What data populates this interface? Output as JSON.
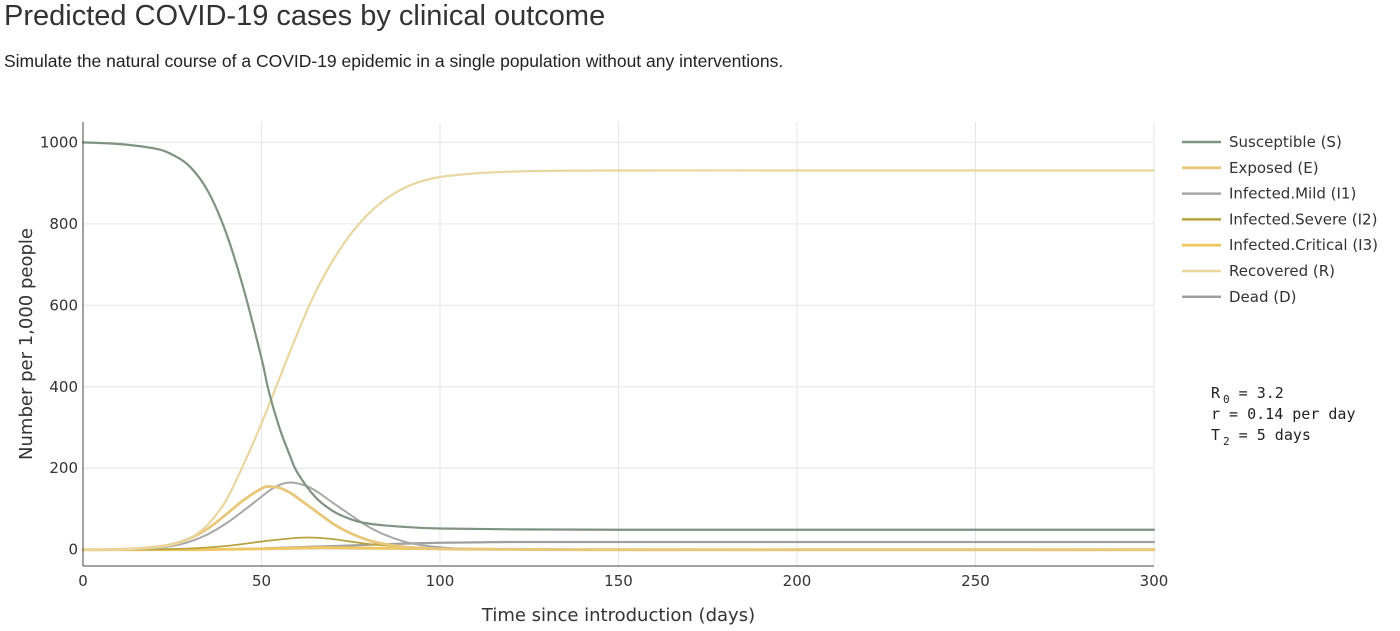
{
  "header": {
    "title": "Predicted COVID-19 cases by clinical outcome",
    "subtitle": "Simulate the natural course of a COVID-19 epidemic in a single population without any interventions."
  },
  "chart_data": {
    "type": "line",
    "xlabel": "Time since introduction (days)",
    "ylabel": "Number per 1,000 people",
    "xlim": [
      0,
      300
    ],
    "ylim": [
      -40,
      1050
    ],
    "xticks": [
      0,
      50,
      100,
      150,
      200,
      250,
      300
    ],
    "yticks": [
      0,
      200,
      400,
      600,
      800,
      1000
    ],
    "grid": true,
    "legend_position": "right",
    "series": [
      {
        "name": "Susceptible (S)",
        "color": "#7f9383",
        "width": 2.2,
        "x": [
          0,
          10,
          20,
          25,
          30,
          35,
          40,
          45,
          50,
          52,
          55,
          58,
          60,
          65,
          70,
          75,
          80,
          90,
          100,
          120,
          150,
          200,
          250,
          300
        ],
        "y": [
          1000,
          996,
          985,
          970,
          940,
          880,
          780,
          640,
          470,
          390,
          300,
          230,
          190,
          130,
          95,
          75,
          64,
          56,
          52,
          50,
          49,
          49,
          49,
          49
        ]
      },
      {
        "name": "Exposed (E)",
        "color": "#e8c77a",
        "width": 2.8,
        "x": [
          0,
          10,
          20,
          25,
          30,
          35,
          40,
          45,
          50,
          52,
          55,
          58,
          60,
          65,
          70,
          75,
          80,
          85,
          90,
          95,
          100,
          110,
          150,
          200,
          300
        ],
        "y": [
          0,
          1,
          6,
          13,
          28,
          52,
          86,
          122,
          150,
          155,
          152,
          140,
          128,
          96,
          64,
          40,
          23,
          13,
          7,
          4,
          2,
          1,
          0,
          0,
          0
        ]
      },
      {
        "name": "Infected.Mild (I1)",
        "color": "#a8a8a8",
        "width": 2.0,
        "x": [
          0,
          10,
          20,
          25,
          30,
          35,
          40,
          45,
          50,
          53,
          56,
          58,
          60,
          63,
          66,
          70,
          75,
          80,
          85,
          90,
          95,
          100,
          110,
          150,
          200,
          300
        ],
        "y": [
          0,
          1,
          4,
          9,
          20,
          38,
          64,
          96,
          130,
          150,
          162,
          165,
          163,
          155,
          140,
          115,
          85,
          56,
          35,
          20,
          11,
          6,
          2,
          0,
          0,
          0
        ]
      },
      {
        "name": "Infected.Severe (I2)",
        "color": "#b8a340",
        "width": 1.8,
        "x": [
          0,
          20,
          30,
          40,
          50,
          55,
          60,
          63,
          66,
          70,
          75,
          80,
          90,
          100,
          110,
          150,
          300
        ],
        "y": [
          0,
          1,
          3,
          9,
          20,
          25,
          29,
          30,
          29,
          26,
          20,
          14,
          7,
          3,
          1,
          0,
          0
        ]
      },
      {
        "name": "Infected.Critical (I3)",
        "color": "#f0c860",
        "width": 2.8,
        "x": [
          0,
          30,
          40,
          50,
          60,
          65,
          70,
          80,
          90,
          100,
          120,
          150,
          300
        ],
        "y": [
          0,
          0,
          1,
          2,
          4,
          5,
          5,
          4,
          3,
          2,
          1,
          0,
          0
        ]
      },
      {
        "name": "Recovered (R)",
        "color": "#ead6a0",
        "width": 2.2,
        "x": [
          0,
          10,
          20,
          25,
          30,
          35,
          40,
          45,
          50,
          55,
          60,
          65,
          70,
          75,
          80,
          85,
          90,
          95,
          100,
          110,
          120,
          130,
          150,
          200,
          250,
          300
        ],
        "y": [
          0,
          1,
          5,
          12,
          28,
          62,
          120,
          210,
          310,
          420,
          530,
          630,
          710,
          775,
          825,
          862,
          888,
          905,
          915,
          924,
          928,
          930,
          931,
          931,
          931,
          931
        ]
      },
      {
        "name": "Dead (D)",
        "color": "#a0a0a0",
        "width": 2.2,
        "x": [
          0,
          30,
          40,
          50,
          60,
          70,
          80,
          90,
          100,
          110,
          120,
          150,
          200,
          300
        ],
        "y": [
          0,
          0,
          1,
          3,
          6,
          9,
          12,
          15,
          17,
          18,
          19,
          19,
          19,
          19
        ]
      }
    ]
  },
  "annotation": {
    "r0_label": "R",
    "r0_sub": "0",
    "r0_value": " = 3.2",
    "growth_line": "r = 0.14  per day",
    "doubling_label": "T",
    "doubling_sub": "2",
    "doubling_value": " =   5  days"
  }
}
